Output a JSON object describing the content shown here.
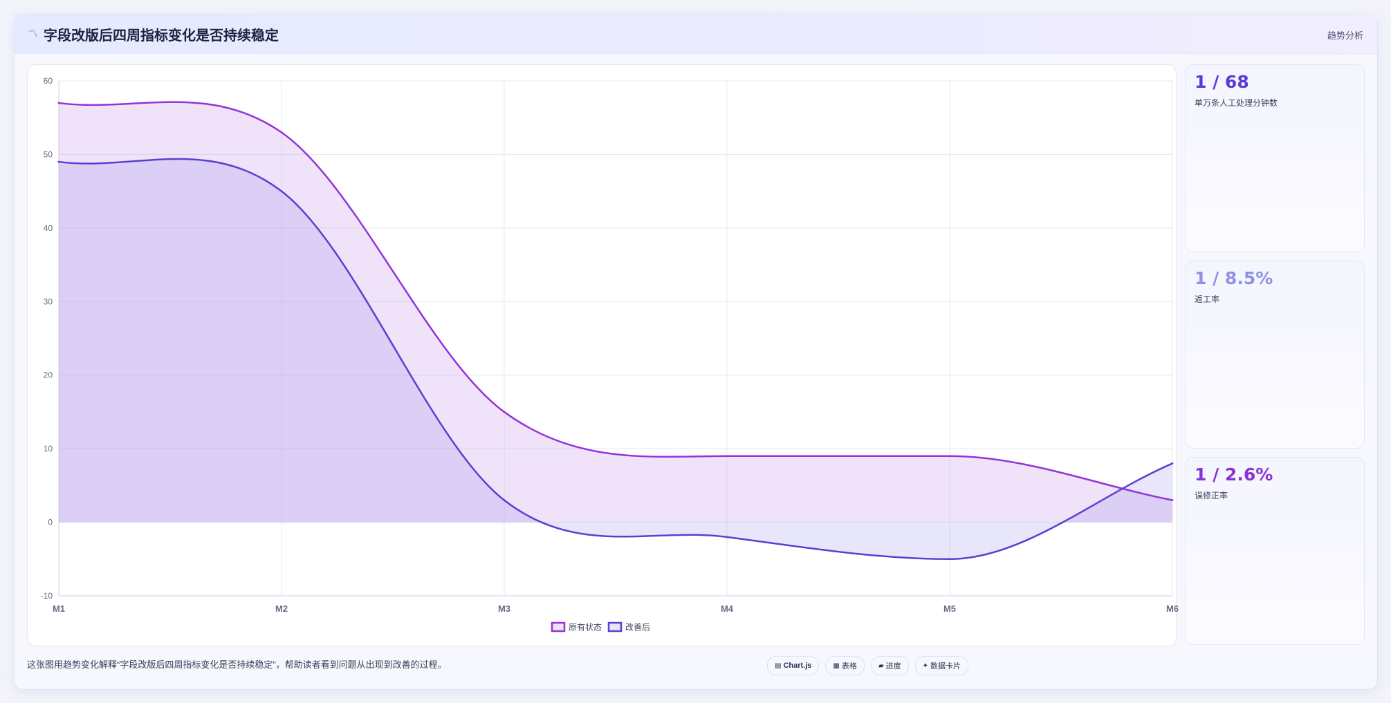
{
  "header": {
    "icon": "chart-line-icon",
    "icon_glyph": "〽",
    "title": "字段改版后四周指标变化是否持续稳定",
    "tag": "趋势分析"
  },
  "kpis": [
    {
      "value": "1 / 68",
      "label": "单万条人工处理分钟数",
      "color": "#5b3bd6"
    },
    {
      "value": "1 / 8.5%",
      "label": "返工率",
      "color": "#8f92e4"
    },
    {
      "value": "1 / 2.6%",
      "label": "误修正率",
      "color": "#8a33d4"
    }
  ],
  "footer": {
    "description": "这张图用趋势变化解释“字段改版后四周指标变化是否持续稳定”，帮助读者看到问题从出现到改善的过程。",
    "badges": [
      {
        "icon_glyph": "▤",
        "label": "Chart.js",
        "strong": true
      },
      {
        "icon_glyph": "▦",
        "label": "表格",
        "strong": false
      },
      {
        "icon_glyph": "▰",
        "label": "进度",
        "strong": false
      },
      {
        "icon_glyph": "✦",
        "label": "数据卡片",
        "strong": false
      }
    ]
  },
  "colors": {
    "series1": "#9333d9",
    "series1_fill": "rgba(200,150,235,0.28)",
    "series2": "#5a3fd0",
    "series2_fill": "rgba(150,140,235,0.22)"
  },
  "chart_data": {
    "type": "area",
    "categories": [
      "M1",
      "M2",
      "M3",
      "M4",
      "M5",
      "M6"
    ],
    "ylim": [
      -10,
      60
    ],
    "yticks": [
      -10,
      0,
      10,
      20,
      30,
      40,
      50,
      60
    ],
    "grid": true,
    "legend_position": "bottom",
    "series": [
      {
        "name": "原有状态",
        "values": [
          57,
          53,
          15,
          9,
          9,
          3
        ]
      },
      {
        "name": "改善后",
        "values": [
          49,
          45,
          3,
          -2,
          -5,
          8
        ]
      }
    ]
  }
}
